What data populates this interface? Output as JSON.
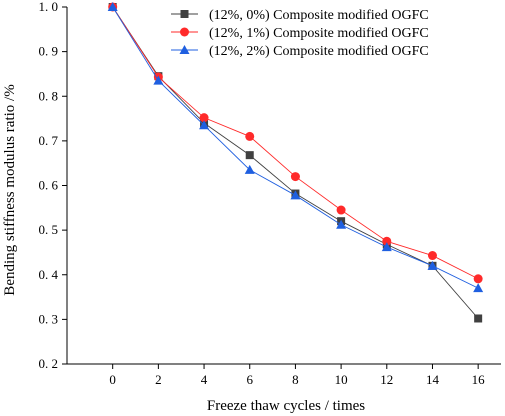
{
  "chart_data": {
    "type": "line",
    "title": "",
    "xlabel": "Freeze thaw cycles / times",
    "ylabel": "Bending stiffness modulus ratio /%",
    "x": [
      0,
      2,
      4,
      6,
      8,
      10,
      12,
      14,
      16
    ],
    "xlim": [
      -2,
      17
    ],
    "ylim": [
      0.2,
      1.0
    ],
    "xticks": [
      "0",
      "2",
      "4",
      "6",
      "8",
      "10",
      "12",
      "14",
      "16"
    ],
    "yticks": [
      "0. 2",
      "0. 3",
      "0. 4",
      "0. 5",
      "0. 6",
      "0. 7",
      "0. 8",
      "0. 9",
      "1. 0"
    ],
    "grid": false,
    "legend_position": "top-right",
    "series": [
      {
        "name": "(12%, 0%) Composite modified OGFC",
        "marker": "square",
        "color": "#404040",
        "values": [
          1.0,
          0.845,
          0.74,
          0.668,
          0.582,
          0.52,
          0.468,
          0.42,
          0.302
        ]
      },
      {
        "name": "(12%, 1%) Composite modified OGFC",
        "marker": "circle",
        "color": "#ff2a2a",
        "values": [
          1.0,
          0.843,
          0.752,
          0.71,
          0.62,
          0.545,
          0.475,
          0.443,
          0.391
        ]
      },
      {
        "name": "(12%, 2%) Composite modified OGFC",
        "marker": "triangle",
        "color": "#1f5fe0",
        "values": [
          1.0,
          0.835,
          0.735,
          0.635,
          0.578,
          0.512,
          0.462,
          0.42,
          0.37
        ]
      }
    ]
  }
}
